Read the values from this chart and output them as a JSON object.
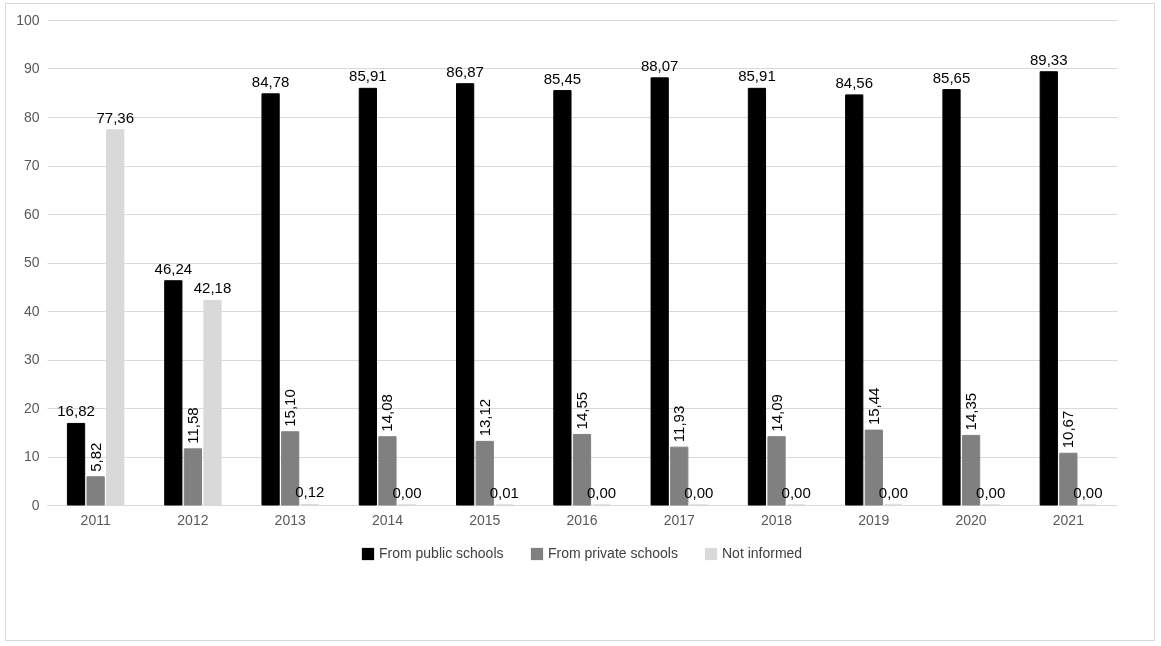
{
  "chart_data": {
    "type": "bar",
    "categories": [
      "2011",
      "2012",
      "2013",
      "2014",
      "2015",
      "2016",
      "2017",
      "2018",
      "2019",
      "2020",
      "2021"
    ],
    "series": [
      {
        "name": "From public schools",
        "color": "#000000",
        "values": [
          16.82,
          46.24,
          84.78,
          85.91,
          86.87,
          85.45,
          88.07,
          85.91,
          84.56,
          85.65,
          89.33
        ],
        "value_labels": [
          "16,82",
          "46,24",
          "84,78",
          "85,91",
          "86,87",
          "85,45",
          "88,07",
          "85,91",
          "84,56",
          "85,65",
          "89,33"
        ]
      },
      {
        "name": "From private schools",
        "color": "#808080",
        "values": [
          5.82,
          11.58,
          15.1,
          14.08,
          13.12,
          14.55,
          11.93,
          14.09,
          15.44,
          14.35,
          10.67
        ],
        "value_labels": [
          "5,82",
          "11,58",
          "15,10",
          "14,08",
          "13,12",
          "14,55",
          "11,93",
          "14,09",
          "15,44",
          "14,35",
          "10,67"
        ]
      },
      {
        "name": "Not informed",
        "color": "#d9d9d9",
        "values": [
          77.36,
          42.18,
          0.12,
          0.0,
          0.01,
          0.0,
          0.0,
          0.0,
          0.0,
          0.0,
          0.0
        ],
        "value_labels": [
          "77,36",
          "42,18",
          "0,12",
          "0,00",
          "0,01",
          "0,00",
          "0,00",
          "0,00",
          "0,00",
          "0,00",
          "0,00"
        ]
      }
    ],
    "ylim": [
      0,
      100
    ],
    "yticks": [
      0,
      10,
      20,
      30,
      40,
      50,
      60,
      70,
      80,
      90,
      100
    ],
    "grid": "y",
    "legend": "bottom"
  }
}
